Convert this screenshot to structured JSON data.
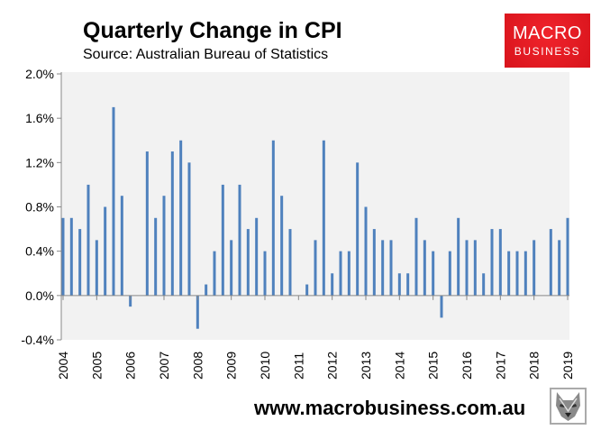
{
  "chart_data": {
    "type": "bar",
    "title": "Quarterly Change in CPI",
    "subtitle": "Source: Australian Bureau of Statistics",
    "xlabel": "",
    "ylabel": "",
    "ylim": [
      -0.4,
      2.0
    ],
    "yticks": [
      "2.0%",
      "1.6%",
      "1.2%",
      "0.8%",
      "0.4%",
      "0.0%",
      "-0.4%"
    ],
    "ytick_values": [
      2.0,
      1.6,
      1.2,
      0.8,
      0.4,
      0.0,
      -0.4
    ],
    "xticks": [
      "2004",
      "2005",
      "2006",
      "2007",
      "2008",
      "2009",
      "2010",
      "2011",
      "2012",
      "2013",
      "2014",
      "2015",
      "2016",
      "2017",
      "2018",
      "2019"
    ],
    "bar_color": "#4f81bd",
    "plot_bg": "#f2f2f2",
    "grid": false,
    "values": [
      0.7,
      0.7,
      0.6,
      1.0,
      0.5,
      0.8,
      1.7,
      0.9,
      -0.1,
      0.0,
      1.3,
      0.7,
      0.9,
      1.3,
      1.4,
      1.2,
      -0.3,
      0.1,
      0.4,
      1.0,
      0.5,
      1.0,
      0.6,
      0.7,
      0.4,
      1.4,
      0.9,
      0.6,
      0.0,
      0.1,
      0.5,
      1.4,
      0.2,
      0.4,
      0.4,
      1.2,
      0.8,
      0.6,
      0.5,
      0.5,
      0.2,
      0.2,
      0.7,
      0.5,
      0.4,
      -0.2,
      0.4,
      0.7,
      0.5,
      0.5,
      0.2,
      0.6,
      0.6,
      0.4,
      0.4,
      0.4,
      0.5,
      0.0,
      0.6,
      0.5,
      0.7
    ]
  },
  "logo": {
    "line1": "MACRO",
    "line2": "BUSINESS",
    "color": "#e31b23"
  },
  "footer": {
    "url": "www.macrobusiness.com.au"
  }
}
